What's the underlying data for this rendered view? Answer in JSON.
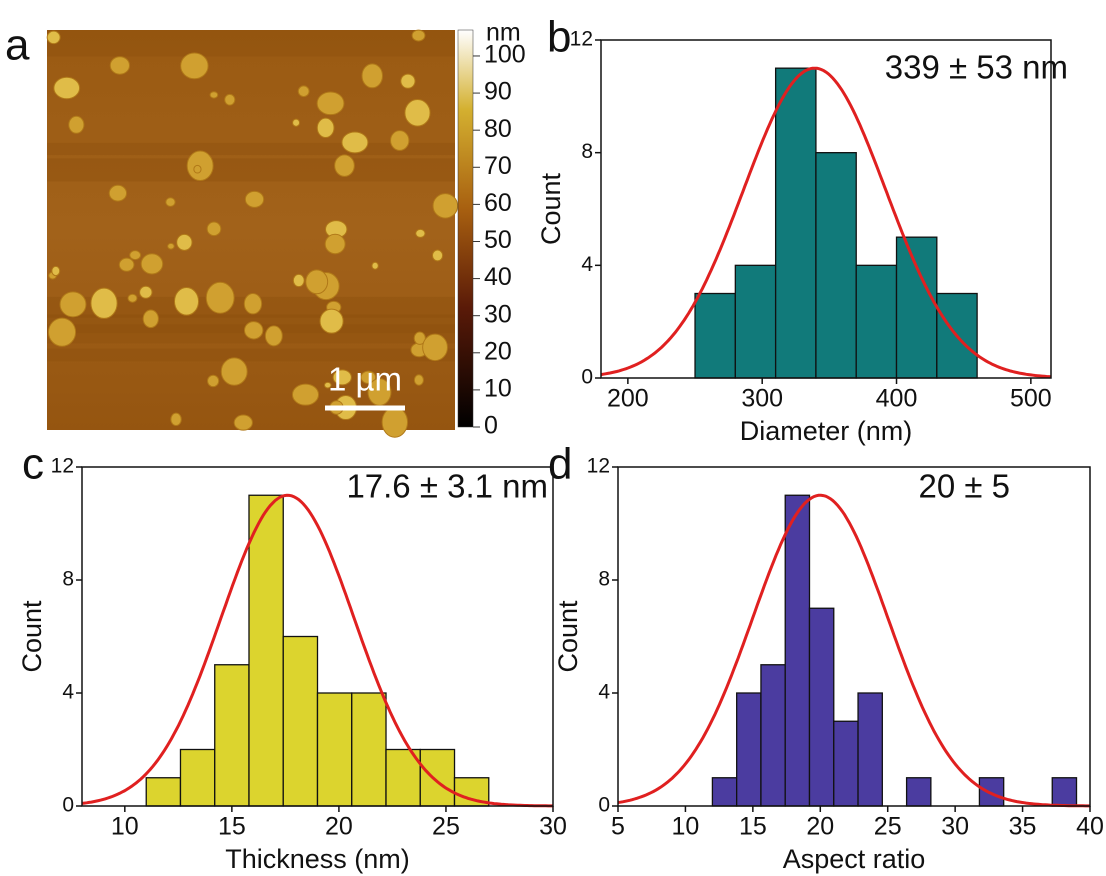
{
  "chart_data": [
    {
      "type": "image",
      "label": "a",
      "colorbar_title": "nm",
      "clim": [
        0,
        107
      ],
      "cticks": [
        0,
        10,
        20,
        30,
        40,
        50,
        60,
        70,
        80,
        90,
        100
      ],
      "scale_bar": "1 µm"
    },
    {
      "type": "histogram",
      "label": "b",
      "xlabel": "Diameter (nm)",
      "ylabel": "Count",
      "annotation": "339 ± 53 nm",
      "bins": [
        250,
        280,
        310,
        340,
        370,
        400,
        430,
        460
      ],
      "counts": [
        3,
        4,
        11,
        8,
        4,
        5,
        3
      ],
      "color": "#117a7a",
      "fit": {
        "mean": 339,
        "sd": 53,
        "amplitude": 11,
        "color": "#e02020"
      },
      "xlim": [
        180,
        515
      ],
      "xticks": [
        200,
        300,
        400,
        500
      ],
      "ylim": [
        0,
        12
      ],
      "yticks": [
        0,
        4,
        8,
        12
      ]
    },
    {
      "type": "histogram",
      "label": "c",
      "xlabel": "Thickness (nm)",
      "ylabel": "Count",
      "annotation": "17.6 ± 3.1 nm",
      "bins": [
        11,
        12.6,
        14.2,
        15.8,
        17.4,
        19,
        20.6,
        22.2,
        23.8,
        25.4,
        27
      ],
      "counts": [
        1,
        2,
        5,
        11,
        6,
        4,
        4,
        2,
        2,
        1
      ],
      "color": "#dcd42e",
      "fit": {
        "mean": 17.6,
        "sd": 3.1,
        "amplitude": 11,
        "color": "#e02020"
      },
      "xlim": [
        8,
        30
      ],
      "xticks": [
        10,
        15,
        20,
        25,
        30
      ],
      "ylim": [
        0,
        12
      ],
      "yticks": [
        0,
        4,
        8,
        12
      ]
    },
    {
      "type": "histogram",
      "label": "d",
      "xlabel": "Aspect ratio",
      "ylabel": "Count",
      "annotation": "20 ± 5",
      "bins": [
        12,
        13.8,
        15.6,
        17.4,
        19.2,
        21,
        22.8,
        24.6,
        26.4,
        28.2,
        30,
        31.8,
        33.6,
        35.4,
        37.2,
        39
      ],
      "counts": [
        1,
        4,
        5,
        11,
        7,
        3,
        4,
        0,
        1,
        0,
        0,
        1,
        0,
        0,
        1
      ],
      "color": "#4b3ca0",
      "fit": {
        "mean": 20,
        "sd": 5,
        "amplitude": 11,
        "color": "#e02020"
      },
      "xlim": [
        5,
        40
      ],
      "xticks": [
        5,
        10,
        15,
        20,
        25,
        30,
        35,
        40
      ],
      "ylim": [
        0,
        12
      ],
      "yticks": [
        0,
        4,
        8,
        12
      ]
    }
  ]
}
